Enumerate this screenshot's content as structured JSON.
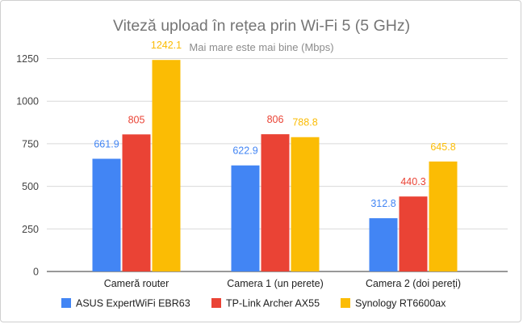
{
  "chart_data": {
    "type": "bar",
    "title": "Viteză upload în rețea prin Wi-Fi 5 (5 GHz)",
    "subtitle": "Mai mare este mai bine (Mbps)",
    "categories": [
      "Cameră router",
      "Camera 1 (un perete)",
      "Camera 2 (doi pereți)"
    ],
    "series": [
      {
        "name": "ASUS ExpertWiFi EBR63",
        "color": "#4285f4",
        "values": [
          661.9,
          622.9,
          312.8
        ],
        "labels": [
          "661.9",
          "622.9",
          "312.8"
        ]
      },
      {
        "name": "TP-Link Archer AX55",
        "color": "#ea4335",
        "values": [
          805,
          806,
          440.3
        ],
        "labels": [
          "805",
          "806",
          "440.3"
        ]
      },
      {
        "name": "Synology RT6600ax",
        "color": "#fbbc04",
        "values": [
          1242.1,
          788.8,
          645.8
        ],
        "labels": [
          "1242.1",
          "788.8",
          "645.8"
        ]
      }
    ],
    "yticks": [
      "0",
      "250",
      "500",
      "750",
      "1000",
      "1250"
    ],
    "ylim": [
      0,
      1300
    ],
    "grid": true,
    "legend": "bottom"
  }
}
